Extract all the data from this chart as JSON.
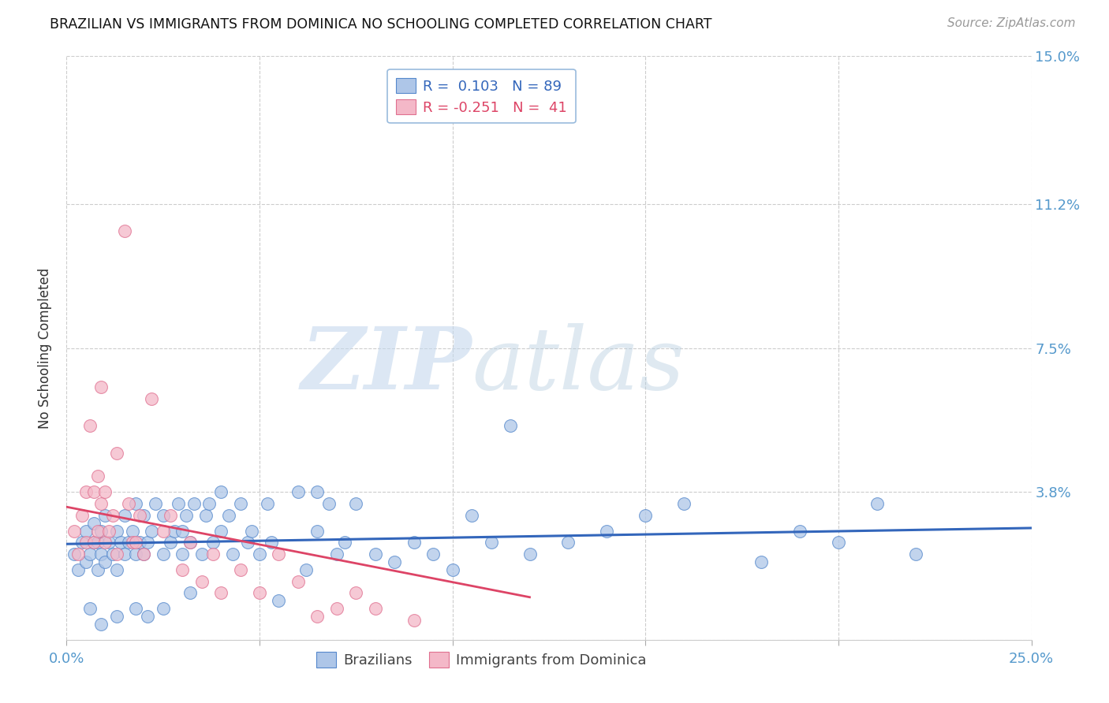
{
  "title": "BRAZILIAN VS IMMIGRANTS FROM DOMINICA NO SCHOOLING COMPLETED CORRELATION CHART",
  "source": "Source: ZipAtlas.com",
  "ylabel": "No Schooling Completed",
  "xlim": [
    0.0,
    0.25
  ],
  "ylim": [
    0.0,
    0.15
  ],
  "yticks": [
    0.0,
    0.038,
    0.075,
    0.112,
    0.15
  ],
  "ytick_labels": [
    "",
    "3.8%",
    "7.5%",
    "11.2%",
    "15.0%"
  ],
  "blue_R": 0.103,
  "blue_N": 89,
  "pink_R": -0.251,
  "pink_N": 41,
  "blue_color": "#aec6e8",
  "pink_color": "#f4b8c8",
  "blue_edge_color": "#5588cc",
  "pink_edge_color": "#e07090",
  "blue_line_color": "#3366bb",
  "pink_line_color": "#dd4466",
  "axis_tick_color": "#5599cc",
  "grid_color": "#cccccc",
  "title_color": "#111111",
  "background": "#ffffff",
  "blue_x": [
    0.002,
    0.003,
    0.004,
    0.005,
    0.005,
    0.006,
    0.007,
    0.007,
    0.008,
    0.008,
    0.009,
    0.009,
    0.01,
    0.01,
    0.011,
    0.012,
    0.013,
    0.013,
    0.014,
    0.015,
    0.015,
    0.016,
    0.017,
    0.018,
    0.018,
    0.019,
    0.02,
    0.02,
    0.021,
    0.022,
    0.023,
    0.025,
    0.025,
    0.027,
    0.028,
    0.029,
    0.03,
    0.03,
    0.031,
    0.032,
    0.033,
    0.035,
    0.036,
    0.037,
    0.038,
    0.04,
    0.042,
    0.043,
    0.045,
    0.047,
    0.048,
    0.05,
    0.052,
    0.053,
    0.055,
    0.06,
    0.062,
    0.065,
    0.068,
    0.07,
    0.072,
    0.075,
    0.08,
    0.085,
    0.09,
    0.095,
    0.1,
    0.105,
    0.11,
    0.115,
    0.12,
    0.13,
    0.14,
    0.15,
    0.16,
    0.18,
    0.19,
    0.2,
    0.21,
    0.22,
    0.065,
    0.04,
    0.025,
    0.018,
    0.032,
    0.013,
    0.021,
    0.009,
    0.006
  ],
  "blue_y": [
    0.022,
    0.018,
    0.025,
    0.02,
    0.028,
    0.022,
    0.025,
    0.03,
    0.018,
    0.025,
    0.022,
    0.028,
    0.02,
    0.032,
    0.025,
    0.022,
    0.018,
    0.028,
    0.025,
    0.022,
    0.032,
    0.025,
    0.028,
    0.022,
    0.035,
    0.025,
    0.022,
    0.032,
    0.025,
    0.028,
    0.035,
    0.022,
    0.032,
    0.025,
    0.028,
    0.035,
    0.022,
    0.028,
    0.032,
    0.025,
    0.035,
    0.022,
    0.032,
    0.035,
    0.025,
    0.028,
    0.032,
    0.022,
    0.035,
    0.025,
    0.028,
    0.022,
    0.035,
    0.025,
    0.01,
    0.038,
    0.018,
    0.028,
    0.035,
    0.022,
    0.025,
    0.035,
    0.022,
    0.02,
    0.025,
    0.022,
    0.018,
    0.032,
    0.025,
    0.055,
    0.022,
    0.025,
    0.028,
    0.032,
    0.035,
    0.02,
    0.028,
    0.025,
    0.035,
    0.022,
    0.038,
    0.038,
    0.008,
    0.008,
    0.012,
    0.006,
    0.006,
    0.004,
    0.008
  ],
  "pink_x": [
    0.002,
    0.003,
    0.004,
    0.005,
    0.005,
    0.006,
    0.007,
    0.007,
    0.008,
    0.008,
    0.009,
    0.009,
    0.01,
    0.01,
    0.011,
    0.012,
    0.013,
    0.013,
    0.015,
    0.016,
    0.017,
    0.018,
    0.019,
    0.02,
    0.022,
    0.025,
    0.027,
    0.03,
    0.032,
    0.035,
    0.038,
    0.04,
    0.045,
    0.05,
    0.055,
    0.06,
    0.065,
    0.07,
    0.075,
    0.08,
    0.09
  ],
  "pink_y": [
    0.028,
    0.022,
    0.032,
    0.025,
    0.038,
    0.055,
    0.025,
    0.038,
    0.028,
    0.042,
    0.035,
    0.065,
    0.025,
    0.038,
    0.028,
    0.032,
    0.022,
    0.048,
    0.105,
    0.035,
    0.025,
    0.025,
    0.032,
    0.022,
    0.062,
    0.028,
    0.032,
    0.018,
    0.025,
    0.015,
    0.022,
    0.012,
    0.018,
    0.012,
    0.022,
    0.015,
    0.006,
    0.008,
    0.012,
    0.008,
    0.005
  ]
}
